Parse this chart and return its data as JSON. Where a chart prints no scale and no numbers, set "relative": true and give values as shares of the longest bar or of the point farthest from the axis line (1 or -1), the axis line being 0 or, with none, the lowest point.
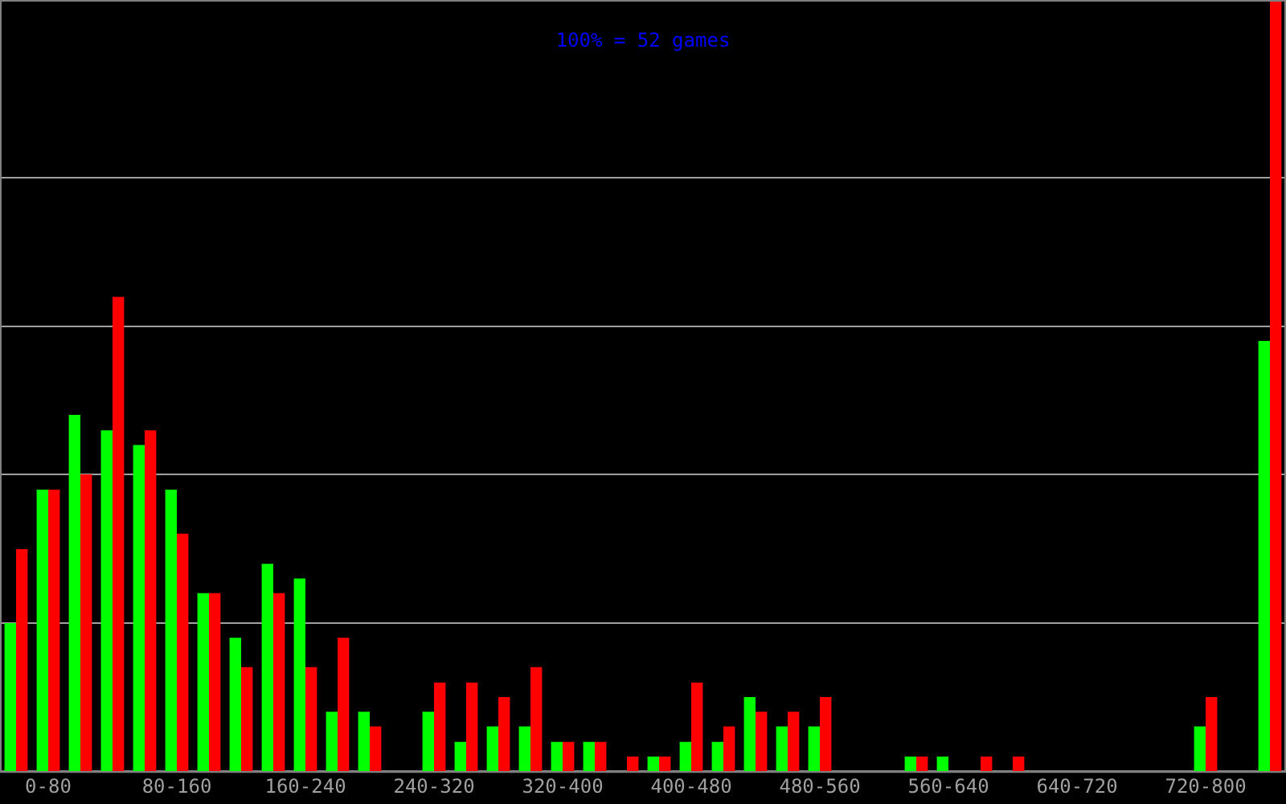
{
  "chart_data": {
    "type": "bar",
    "relative": true,
    "annotations": [
      "100% = 52 games"
    ],
    "categories": [
      null,
      "0-80",
      null,
      null,
      null,
      "80-160",
      null,
      null,
      null,
      "160-240",
      null,
      null,
      null,
      "240-320",
      null,
      null,
      null,
      "320-400",
      null,
      null,
      null,
      "400-480",
      null,
      null,
      null,
      "480-560",
      null,
      null,
      null,
      "560-640",
      null,
      null,
      null,
      "640-720",
      null,
      null,
      null,
      "720-800",
      null,
      null
    ],
    "series": [
      {
        "color": "#00ff00",
        "values": [
          0.192,
          0.365,
          0.462,
          0.442,
          0.423,
          0.365,
          0.231,
          0.173,
          0.269,
          0.25,
          0.077,
          0.077,
          0,
          0.077,
          0.038,
          0.058,
          0.058,
          0.038,
          0.038,
          0,
          0.019,
          0.038,
          0.038,
          0.096,
          0.058,
          0.058,
          0,
          0,
          0.019,
          0.019,
          0,
          0,
          0,
          0,
          0,
          0,
          0,
          0.058,
          0,
          0.558
        ]
      },
      {
        "color": "#ff0000",
        "values": [
          0.288,
          0.365,
          0.385,
          0.615,
          0.442,
          0.308,
          0.231,
          0.135,
          0.231,
          0.135,
          0.173,
          0.058,
          0,
          0.115,
          0.115,
          0.096,
          0.135,
          0.038,
          0.038,
          0.019,
          0.019,
          0.115,
          0.058,
          0.077,
          0.077,
          0.096,
          0,
          0,
          0.019,
          0,
          0.019,
          0.019,
          0,
          0,
          0,
          0,
          0,
          0.096,
          0,
          1
        ]
      }
    ],
    "grid": "y",
    "legend": false
  }
}
